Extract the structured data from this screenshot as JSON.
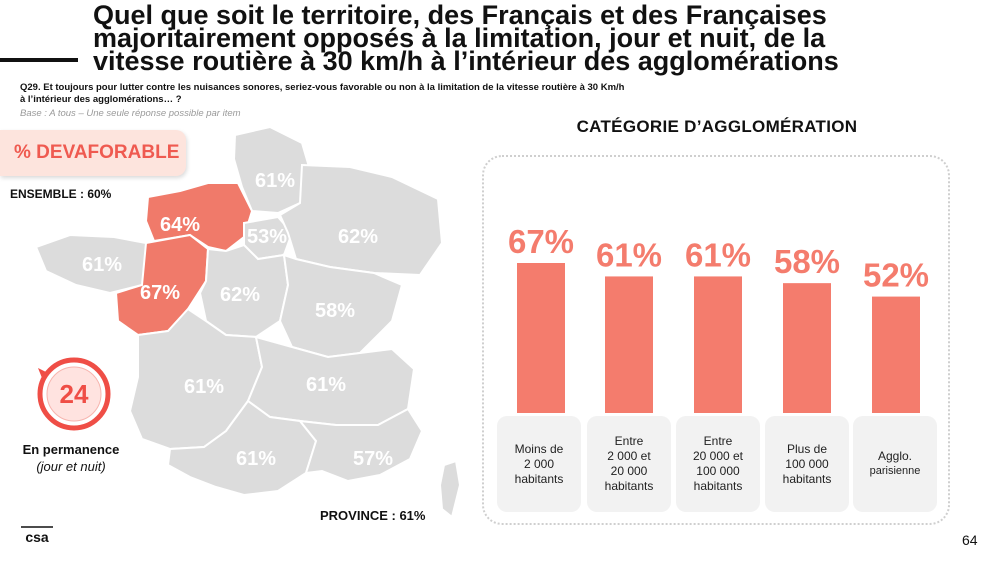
{
  "header": {
    "title_line1": "Quel que soit le territoire, des Français et des Françaises",
    "title_line2": "majoritairement opposés à la limitation, jour et nuit, de la",
    "title_line3": "vitesse routière à 30 km/h à l’intérieur des agglomérations",
    "question_line1": "Q29. Et toujours pour lutter contre les nuisances sonores, seriez-vous favorable ou non à la limitation de la vitesse routière à 30 Km/h",
    "question_line2": "à l’intérieur des agglomérations… ?",
    "base": "Base : A tous – Une seule réponse possible par item"
  },
  "left": {
    "badge": "% DEVAFORABLE",
    "ensemble": "ENSEMBLE : 60%",
    "clock_number": "24",
    "permanence_title": "En permanence",
    "permanence_sub": "(jour et nuit)",
    "province": "PROVINCE : 61%"
  },
  "map": {
    "highlight_color": "#f07a6a",
    "base_color": "#dcdcdc",
    "regions": [
      {
        "name": "hauts-de-france",
        "value": "61%",
        "highlight": false
      },
      {
        "name": "normandie",
        "value": "64%",
        "highlight": true
      },
      {
        "name": "ile-de-france",
        "value": "53%",
        "highlight": false
      },
      {
        "name": "grand-est",
        "value": "62%",
        "highlight": false
      },
      {
        "name": "bretagne",
        "value": "61%",
        "highlight": false
      },
      {
        "name": "pays-de-la-loire",
        "value": "67%",
        "highlight": true
      },
      {
        "name": "centre-val-de-loire",
        "value": "62%",
        "highlight": false
      },
      {
        "name": "bourgogne-franche-comte",
        "value": "58%",
        "highlight": false
      },
      {
        "name": "nouvelle-aquitaine",
        "value": "61%",
        "highlight": false
      },
      {
        "name": "auvergne-rhone-alpes",
        "value": "61%",
        "highlight": false
      },
      {
        "name": "occitanie",
        "value": "61%",
        "highlight": false
      },
      {
        "name": "paca",
        "value": "57%",
        "highlight": false
      }
    ]
  },
  "chart_title": "CATÉGORIE D’AGGLOMÉRATION",
  "chart_data": {
    "type": "bar",
    "categories": [
      "Moins de 2 000 habitants",
      "Entre 2 000 et 20 000 habitants",
      "Entre 20 000 et 100 000 habitants",
      "Plus de 100 000 habitants",
      "Agglo. parisienne"
    ],
    "values": [
      67,
      61,
      61,
      58,
      52
    ],
    "value_labels": [
      "67%",
      "61%",
      "61%",
      "58%",
      "52%"
    ],
    "color": "#f47c6d",
    "ylim": [
      0,
      100
    ]
  },
  "categories_display": [
    [
      "Moins de",
      "2 000",
      "habitants"
    ],
    [
      "Entre",
      "2 000 et",
      "20 000",
      "habitants"
    ],
    [
      "Entre",
      "20 000 et",
      "100 000",
      "habitants"
    ],
    [
      "Plus de",
      "100 000",
      "habitants"
    ],
    [
      "Agglo.",
      "parisienne"
    ]
  ],
  "footer": {
    "logo": "csa",
    "page_number": "64"
  }
}
